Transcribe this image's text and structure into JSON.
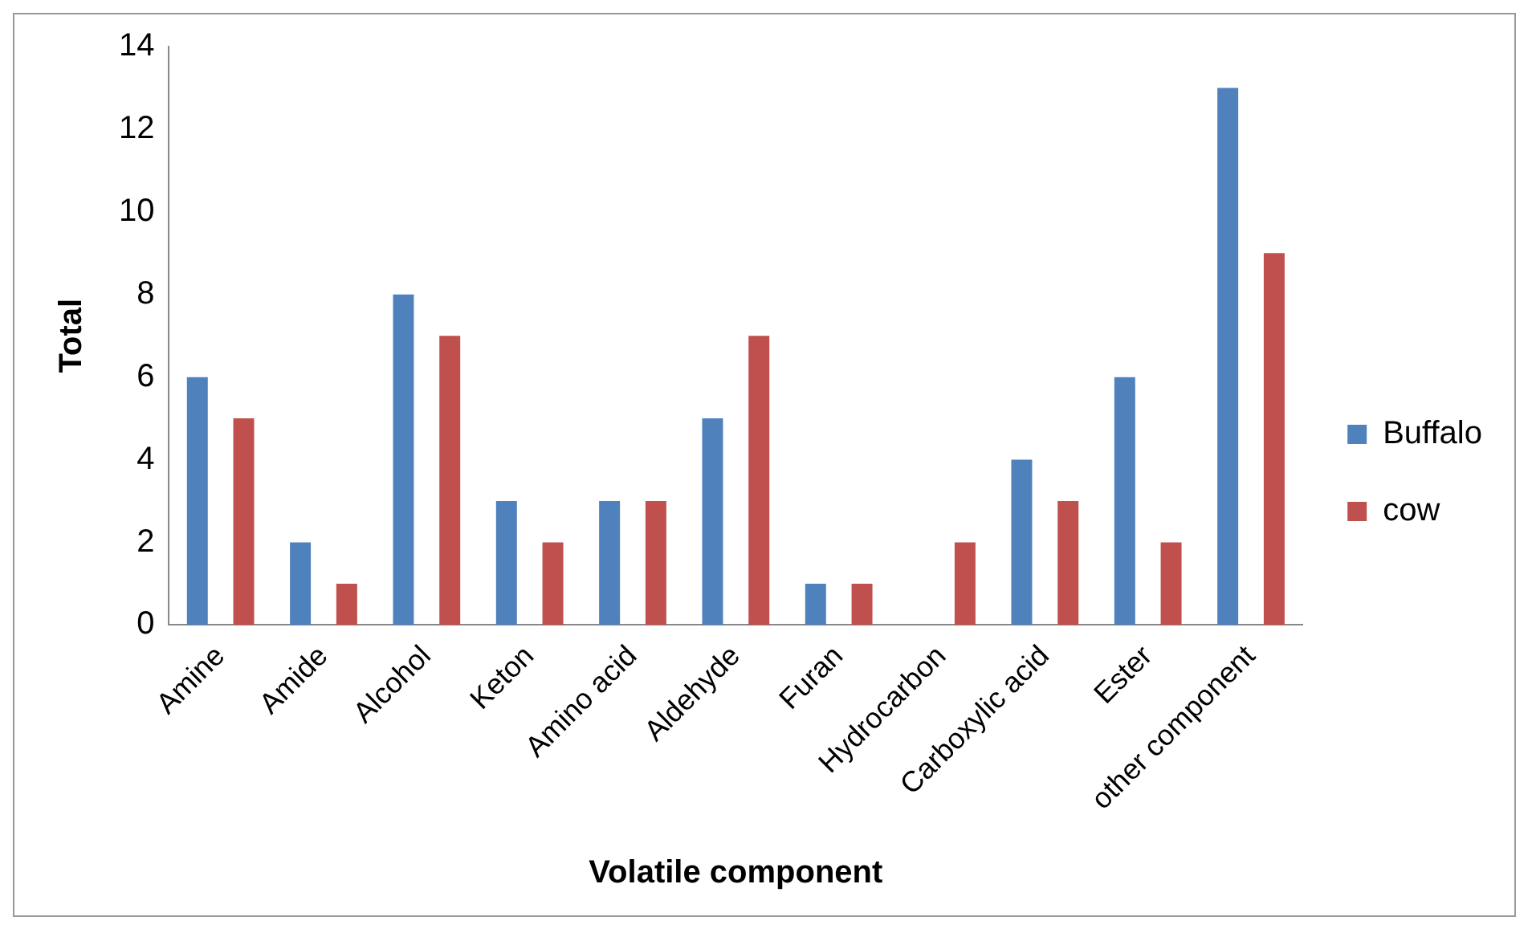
{
  "chart_data": {
    "type": "bar",
    "xlabel": "Volatile component",
    "ylabel": "Total",
    "categories": [
      "Amine",
      "Amide",
      "Alcohol",
      "Keton",
      "Amino acid",
      "Aldehyde",
      "Furan",
      "Hydrocarbon",
      "Carboxylic acid",
      "Ester",
      "other component"
    ],
    "series": [
      {
        "name": "Buffalo",
        "color": "#4f81bd",
        "values": [
          6,
          2,
          8,
          3,
          3,
          5,
          1,
          0,
          4,
          6,
          13
        ]
      },
      {
        "name": "cow",
        "color": "#c0504d",
        "values": [
          5,
          1,
          7,
          2,
          3,
          7,
          1,
          2,
          3,
          2,
          9
        ]
      }
    ],
    "ylim": [
      0,
      14
    ],
    "yticks": [
      0,
      2,
      4,
      6,
      8,
      10,
      12,
      14
    ],
    "grid": false,
    "legend": "right"
  }
}
